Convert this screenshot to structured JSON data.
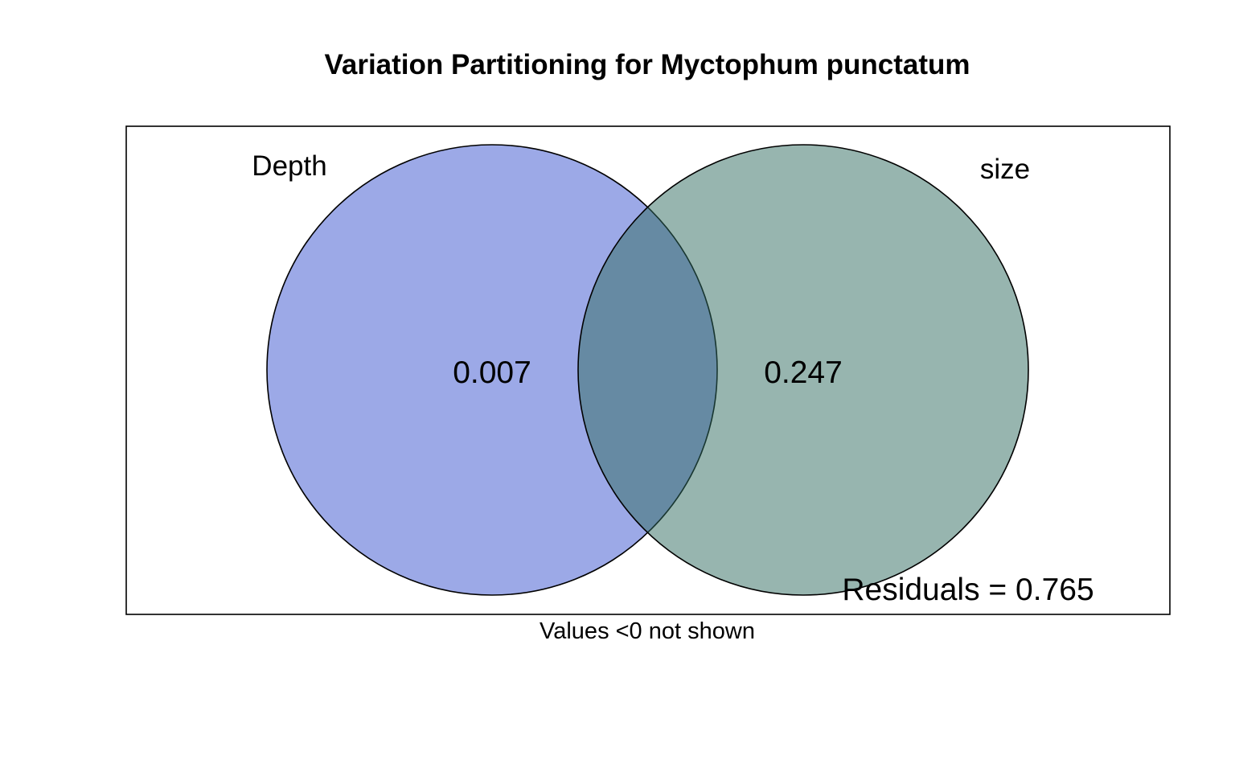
{
  "chart_data": {
    "type": "venn",
    "title": "Variation Partitioning for Myctophum punctatum",
    "sets": [
      {
        "name": "Depth",
        "unique_fraction": "0.007",
        "color": "#3a53cf"
      },
      {
        "name": "size",
        "unique_fraction": "0.247",
        "color": "#2f6b5f"
      }
    ],
    "shared_fraction": null,
    "overlap_color": "#637c99",
    "residuals_label": "Residuals = 0.765",
    "footnote": "Values <0 not shown",
    "fill_opacity": 0.5
  }
}
